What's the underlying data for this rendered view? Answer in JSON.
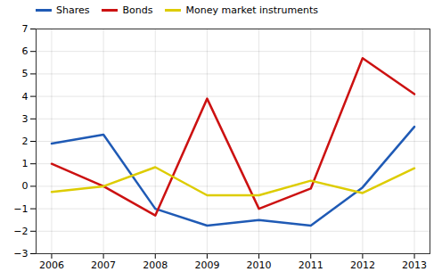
{
  "chart_data": {
    "type": "line",
    "x": [
      2006,
      2007,
      2008,
      2009,
      2010,
      2011,
      2012,
      2013
    ],
    "series": [
      {
        "name": "Shares",
        "color": "#1f5ab5",
        "values": [
          1.9,
          2.3,
          -1.0,
          -1.75,
          -1.5,
          -1.75,
          -0.05,
          2.65
        ]
      },
      {
        "name": "Bonds",
        "color": "#cc1111",
        "values": [
          1.0,
          0.0,
          -1.3,
          3.9,
          -1.0,
          -0.1,
          5.7,
          4.1
        ]
      },
      {
        "name": "Money market instruments",
        "color": "#ddcc00",
        "values": [
          -0.25,
          0.0,
          0.85,
          -0.4,
          -0.4,
          0.25,
          -0.3,
          0.8
        ]
      }
    ],
    "xlim": [
      2005.7,
      2013.3
    ],
    "xticks": [
      2006,
      2007,
      2008,
      2009,
      2010,
      2011,
      2012,
      2013
    ],
    "ylim": [
      -3,
      7
    ],
    "yticks": [
      -3,
      -2,
      -1,
      0,
      1,
      2,
      3,
      4,
      5,
      6,
      7
    ],
    "grid": true,
    "legend": "upper left"
  }
}
